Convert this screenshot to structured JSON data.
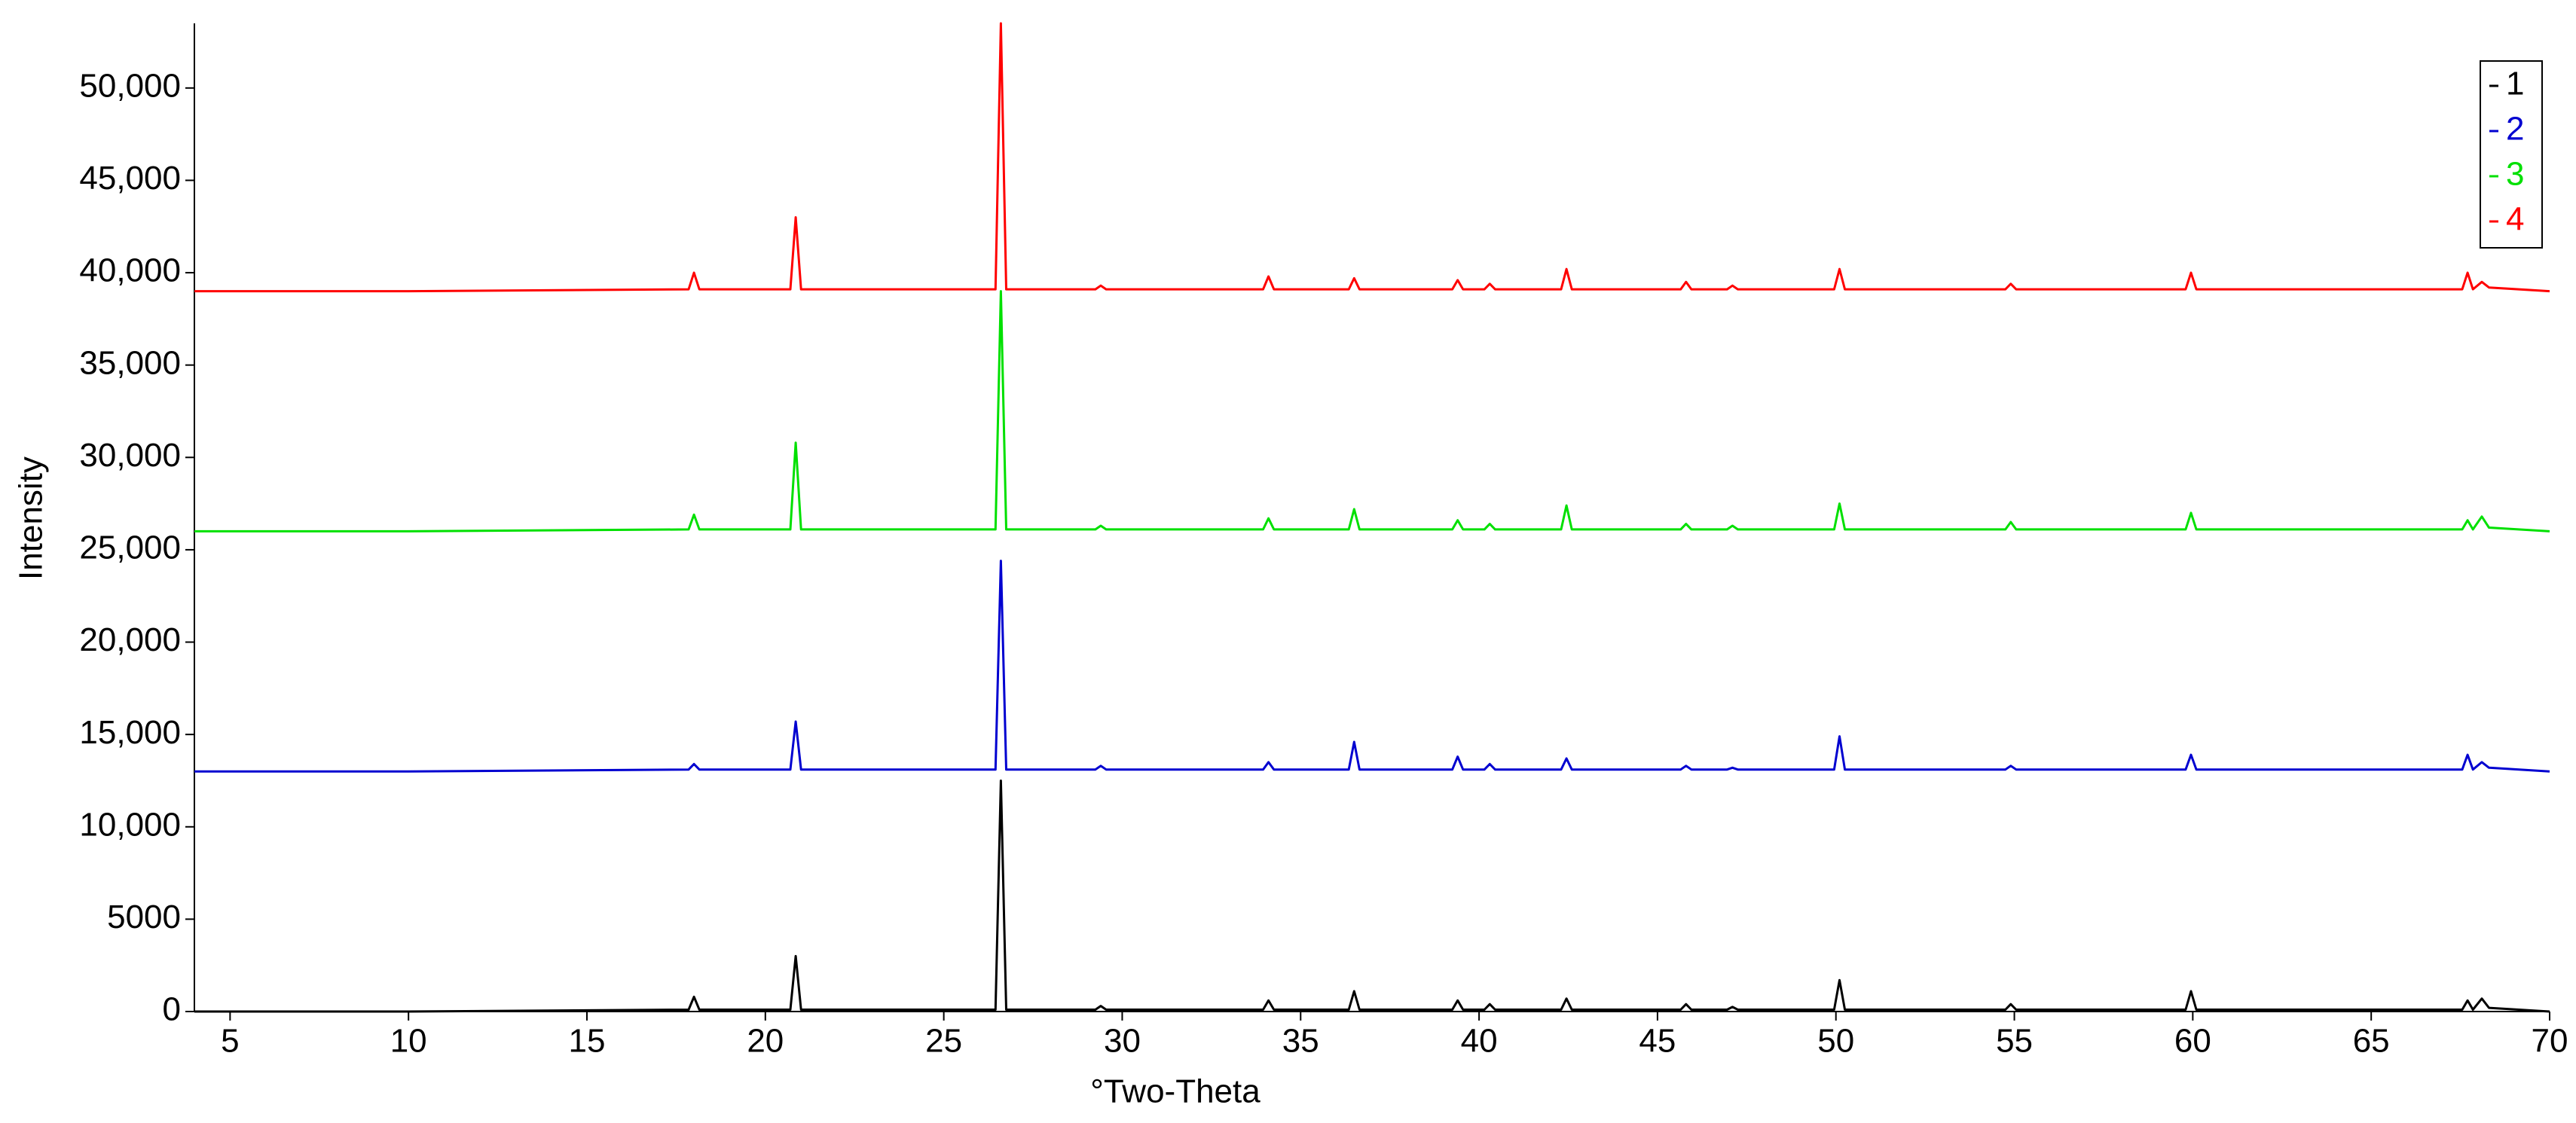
{
  "chart_data": {
    "type": "line",
    "x_label": "°Two-Theta",
    "y_label": "Intensity",
    "x": [
      4,
      10,
      17.85,
      18.0,
      18.15,
      20.7,
      20.85,
      21.0,
      26.45,
      26.6,
      26.75,
      29.25,
      29.4,
      29.55,
      33.95,
      34.1,
      34.25,
      36.35,
      36.5,
      36.65,
      39.25,
      39.4,
      39.55,
      40.15,
      40.3,
      40.45,
      42.3,
      42.45,
      42.6,
      45.65,
      45.8,
      45.95,
      46.95,
      47.1,
      47.25,
      49.95,
      50.1,
      50.25,
      54.75,
      54.9,
      55.05,
      59.8,
      59.95,
      60.1,
      67.55,
      67.7,
      67.85,
      68.1,
      68.3,
      70
    ],
    "series": [
      {
        "name": "1",
        "color": "#000000",
        "values": [
          0,
          0,
          100,
          800,
          100,
          100,
          3000,
          100,
          100,
          12500,
          100,
          100,
          300,
          100,
          100,
          600,
          100,
          100,
          1100,
          100,
          100,
          600,
          100,
          100,
          400,
          100,
          100,
          700,
          100,
          100,
          400,
          100,
          100,
          250,
          100,
          100,
          1700,
          100,
          100,
          400,
          100,
          100,
          1100,
          100,
          100,
          600,
          100,
          700,
          200,
          0
        ]
      },
      {
        "name": "2",
        "color": "#0000d0",
        "values": [
          13000,
          13000,
          13100,
          13400,
          13100,
          13100,
          15700,
          13100,
          13100,
          24400,
          13100,
          13100,
          13300,
          13100,
          13100,
          13500,
          13100,
          13100,
          14600,
          13100,
          13100,
          13800,
          13100,
          13100,
          13400,
          13100,
          13100,
          13700,
          13100,
          13100,
          13300,
          13100,
          13100,
          13200,
          13100,
          13100,
          14900,
          13100,
          13100,
          13300,
          13100,
          13100,
          13900,
          13100,
          13100,
          13900,
          13100,
          13500,
          13200,
          13000
        ]
      },
      {
        "name": "3",
        "color": "#00e000",
        "values": [
          26000,
          26000,
          26100,
          26900,
          26100,
          26100,
          30800,
          26100,
          26100,
          39000,
          26100,
          26100,
          26300,
          26100,
          26100,
          26700,
          26100,
          26100,
          27200,
          26100,
          26100,
          26600,
          26100,
          26100,
          26400,
          26100,
          26100,
          27400,
          26100,
          26100,
          26400,
          26100,
          26100,
          26300,
          26100,
          26100,
          27500,
          26100,
          26100,
          26500,
          26100,
          26100,
          27000,
          26100,
          26100,
          26600,
          26100,
          26800,
          26200,
          26000
        ]
      },
      {
        "name": "4",
        "color": "#ff0000",
        "values": [
          39000,
          39000,
          39100,
          40000,
          39100,
          39100,
          43000,
          39100,
          39100,
          53500,
          39100,
          39100,
          39300,
          39100,
          39100,
          39800,
          39100,
          39100,
          39700,
          39100,
          39100,
          39600,
          39100,
          39100,
          39400,
          39100,
          39100,
          40200,
          39100,
          39100,
          39500,
          39100,
          39100,
          39300,
          39100,
          39100,
          40200,
          39100,
          39100,
          39400,
          39100,
          39100,
          40000,
          39100,
          39100,
          40000,
          39100,
          39500,
          39200,
          39000
        ]
      }
    ],
    "xlim": [
      4,
      70
    ],
    "xticks": [
      5,
      10,
      15,
      20,
      25,
      30,
      35,
      40,
      45,
      50,
      55,
      60,
      65,
      70
    ],
    "ylim": [
      0,
      53500
    ],
    "yticks": [
      0,
      5000,
      {
        "value": 10000,
        "label": "10,000"
      },
      {
        "value": 15000,
        "label": "15,000"
      },
      {
        "value": 20000,
        "label": "20,000"
      },
      {
        "value": 25000,
        "label": "25,000"
      },
      {
        "value": 30000,
        "label": "30,000"
      },
      {
        "value": 35000,
        "label": "35,000"
      },
      {
        "value": 40000,
        "label": "40,000"
      },
      {
        "value": 45000,
        "label": "45,000"
      },
      {
        "value": 50000,
        "label": "50,000"
      }
    ],
    "legend": "top-right",
    "grid": false
  }
}
